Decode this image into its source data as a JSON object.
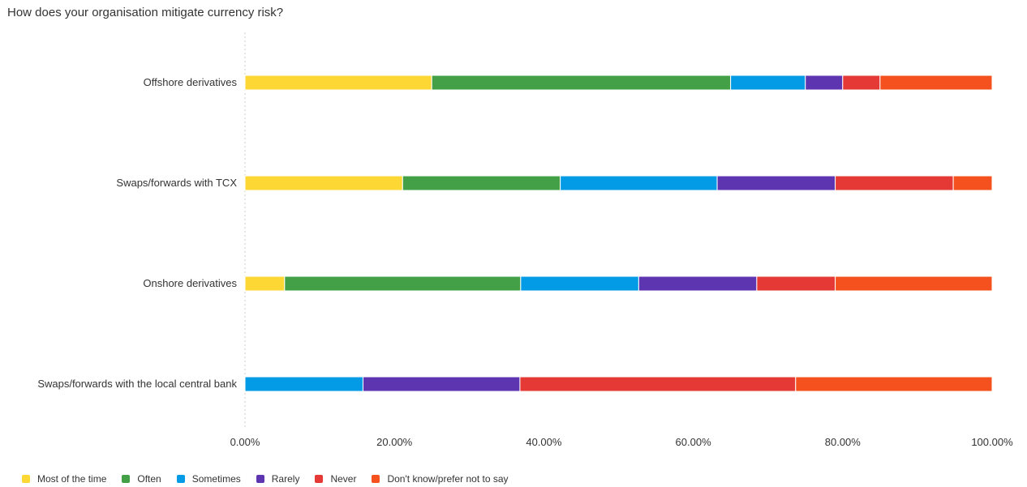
{
  "title": "How does your organisation mitigate currency risk?",
  "chart_data": {
    "type": "bar",
    "orientation": "horizontal",
    "stacked": true,
    "categories": [
      "Offshore derivatives",
      "Swaps/forwards with TCX",
      "Onshore derivatives",
      "Swaps/forwards with the local central bank"
    ],
    "series": [
      {
        "name": "Most of the time",
        "color": "#FDD835",
        "values": [
          25.0,
          21.1,
          5.3,
          0.0
        ]
      },
      {
        "name": "Often",
        "color": "#43A047",
        "values": [
          40.0,
          21.1,
          31.6,
          0.0
        ]
      },
      {
        "name": "Sometimes",
        "color": "#039BE5",
        "values": [
          10.0,
          21.0,
          15.8,
          15.8
        ]
      },
      {
        "name": "Rarely",
        "color": "#5E35B1",
        "values": [
          5.0,
          15.8,
          15.8,
          21.0
        ]
      },
      {
        "name": "Never",
        "color": "#E53935",
        "values": [
          5.0,
          15.8,
          10.5,
          36.9
        ]
      },
      {
        "name": "Don't know/prefer not to say",
        "color": "#F4511E",
        "values": [
          15.0,
          5.2,
          21.0,
          26.3
        ]
      }
    ],
    "xlim": [
      0,
      100
    ],
    "x_ticks": [
      "0.00%",
      "20.00%",
      "40.00%",
      "60.00%",
      "80.00%",
      "100.00%"
    ],
    "x_tick_values": [
      0,
      20,
      40,
      60,
      80,
      100
    ],
    "legend_position": "bottom-left",
    "grid": false
  }
}
